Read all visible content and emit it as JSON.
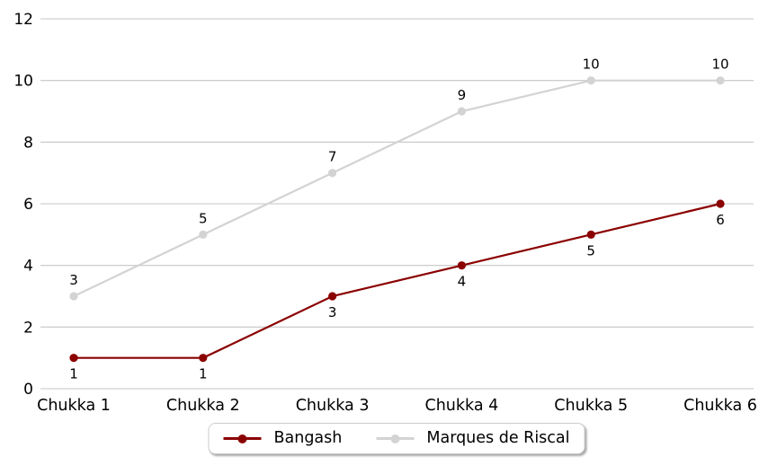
{
  "colors": {
    "background": "#ffffff",
    "grid": "#c6c6c6",
    "tick_text": "#000000",
    "data_label_text": "#000000",
    "legend_border": "#cccccc"
  },
  "chart_data": {
    "type": "line",
    "title": "",
    "xlabel": "",
    "ylabel": "",
    "categories": [
      "Chukka 1",
      "Chukka 2",
      "Chukka 3",
      "Chukka 4",
      "Chukka 5",
      "Chukka 6"
    ],
    "series": [
      {
        "name": "Bangash",
        "values": [
          1,
          1,
          3,
          4,
          5,
          6
        ],
        "color": "#8b0000",
        "label_position": "below"
      },
      {
        "name": "Marques de Riscal",
        "values": [
          3,
          5,
          7,
          9,
          10,
          10
        ],
        "color": "#d3d3d3",
        "label_position": "above"
      }
    ],
    "ylim": [
      0,
      12
    ],
    "yticks": [
      0,
      2,
      4,
      6,
      8,
      10,
      12
    ],
    "grid": "horizontal",
    "legend_position": "bottom-center"
  }
}
